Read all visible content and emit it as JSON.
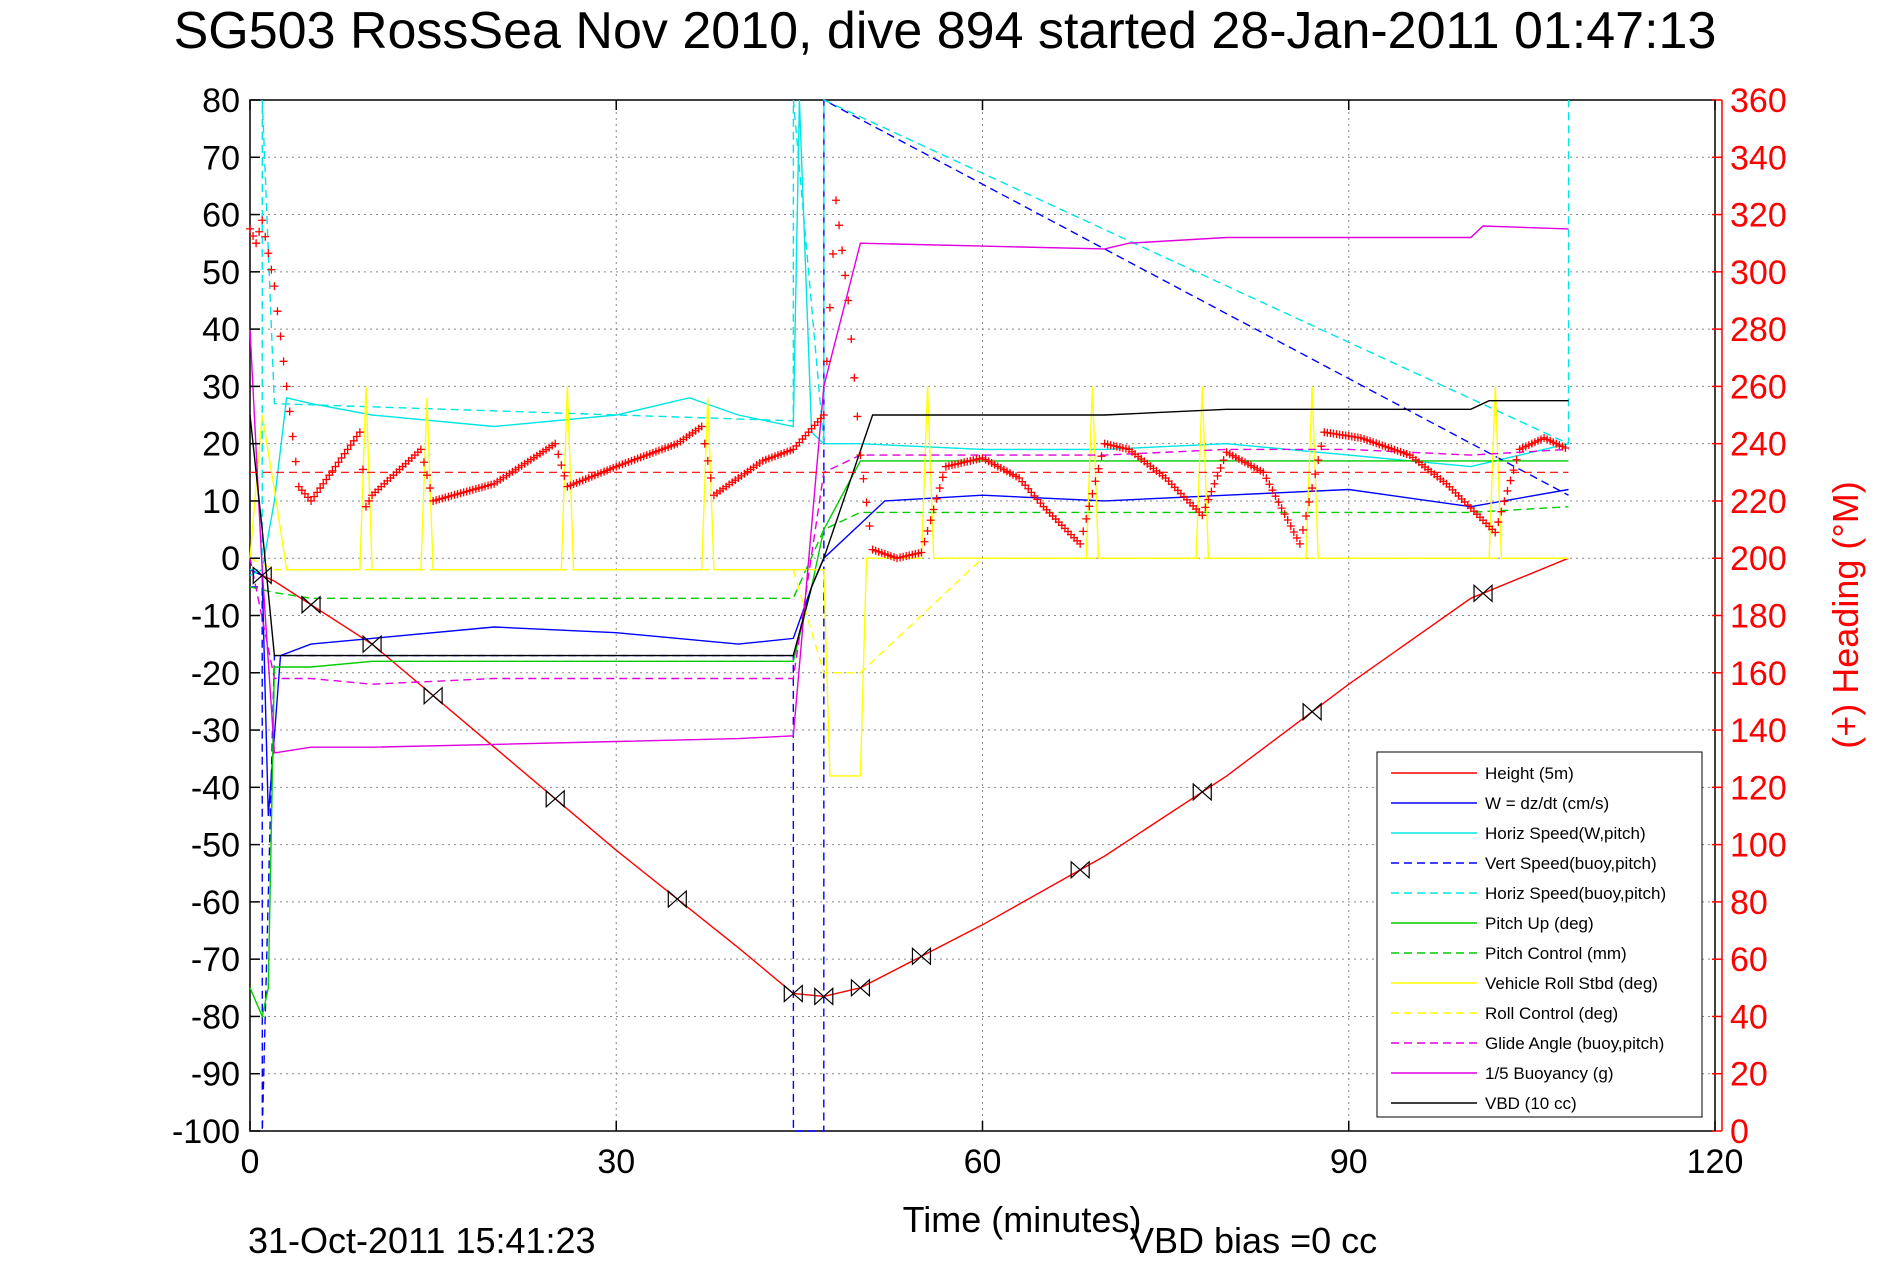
{
  "title": "SG503 RossSea Nov 2010, dive 894 started 28-Jan-2011 01:47:13",
  "footer": {
    "timestamp": "31-Oct-2011 15:41:23",
    "vbd_bias": "VBD bias =0 cc"
  },
  "chart_data": {
    "type": "line",
    "xlabel": "Time (minutes)",
    "ylabel_right": "(+) Heading (°M)",
    "xlim": [
      0,
      120
    ],
    "ylim_left": [
      -100,
      80
    ],
    "ylim_right": [
      0,
      360
    ],
    "x_ticks": [
      "0",
      "30",
      "60",
      "90",
      "120"
    ],
    "y_left_ticks": [
      "80",
      "70",
      "60",
      "50",
      "40",
      "30",
      "20",
      "10",
      "0",
      "-10",
      "-20",
      "-30",
      "-40",
      "-50",
      "-60",
      "-70",
      "-80",
      "-90",
      "-100"
    ],
    "y_right_ticks": [
      "360",
      "340",
      "320",
      "300",
      "280",
      "260",
      "240",
      "220",
      "200",
      "180",
      "160",
      "140",
      "120",
      "100",
      "80",
      "60",
      "40",
      "20",
      "0"
    ],
    "grid": true,
    "legend_position": "lower-right",
    "series": [
      {
        "name": "Height (5m)",
        "color": "#ff0000",
        "dash": "solid",
        "x": [
          0,
          2,
          10,
          20,
          30,
          40,
          44.5,
          47,
          50,
          60,
          70,
          80,
          90,
          100,
          108
        ],
        "y": [
          -2,
          -4,
          -15,
          -33,
          -51,
          -68,
          -76,
          -76.5,
          -75,
          -64,
          -52,
          -38,
          -22,
          -7,
          0
        ]
      },
      {
        "name": "W = dz/dt (cm/s)",
        "color": "#0000ff",
        "dash": "solid",
        "x": [
          0,
          1,
          1.5,
          2.5,
          5,
          10,
          20,
          30,
          40,
          44.5,
          46,
          47,
          50,
          52,
          60,
          70,
          80,
          90,
          100,
          108
        ],
        "y": [
          -2,
          -3,
          -45,
          -17,
          -15,
          -14,
          -12,
          -13,
          -15,
          -14,
          -5,
          0,
          6,
          10,
          11,
          10,
          11,
          12,
          9,
          12
        ]
      },
      {
        "name": "Horiz Speed(W,pitch)",
        "color": "#00e5e5",
        "dash": "solid",
        "x": [
          0,
          1,
          2,
          3,
          5,
          10,
          20,
          30,
          36,
          40,
          44.5,
          45,
          46,
          47,
          50,
          60,
          70,
          80,
          90,
          100,
          108
        ],
        "y": [
          -3,
          -2,
          10,
          28,
          27,
          25,
          23,
          25,
          28,
          25,
          23,
          80,
          22,
          20,
          20,
          19,
          19,
          20,
          18,
          16,
          20
        ]
      },
      {
        "name": "Vert Speed(buoy,pitch)",
        "color": "#0000ff",
        "dash": "dashed",
        "x": [
          0,
          1,
          1.01,
          2,
          44.5,
          44.51,
          47,
          47.01,
          108
        ],
        "y": [
          -5,
          -5,
          -100,
          -17,
          -17,
          -100,
          -100,
          80,
          11
        ]
      },
      {
        "name": "Horiz Speed(buoy,pitch)",
        "color": "#00e5e5",
        "dash": "dashed",
        "x": [
          0,
          1,
          1.01,
          2,
          44.5,
          44.51,
          47,
          47.01,
          108,
          108.01
        ],
        "y": [
          -2,
          -2,
          80,
          27,
          24,
          80,
          20,
          80,
          20,
          80
        ]
      },
      {
        "name": "Pitch Up (deg)",
        "color": "#00cc00",
        "dash": "solid",
        "x": [
          0,
          1,
          1.5,
          2,
          5,
          10,
          20,
          30,
          40,
          44.5,
          46,
          47,
          50,
          60,
          70,
          80,
          90,
          100,
          108
        ],
        "y": [
          -75,
          -80,
          -75,
          -19,
          -19,
          -18,
          -18,
          -18,
          -18,
          -18,
          -5,
          5,
          17,
          17,
          17,
          17,
          17,
          17,
          17
        ]
      },
      {
        "name": "Pitch Control (mm)",
        "color": "#00cc00",
        "dash": "dashed",
        "x": [
          0,
          2,
          5,
          10,
          20,
          30,
          40,
          44.5,
          47,
          50,
          60,
          70,
          80,
          90,
          100,
          108
        ],
        "y": [
          -5,
          -6,
          -7,
          -7,
          -7,
          -7,
          -7,
          -7,
          5,
          8,
          8,
          8,
          8,
          8,
          8,
          9
        ]
      },
      {
        "name": "Vehicle Roll Stbd (deg)",
        "color": "#ffff00",
        "dash": "solid",
        "x": [
          0,
          1,
          2,
          3,
          9,
          9.5,
          10,
          14,
          14.5,
          15,
          25.5,
          26,
          26.5,
          37,
          37.5,
          38,
          47,
          47.5,
          50,
          50.5,
          55,
          55.5,
          56,
          68.5,
          69,
          69.5,
          77.5,
          78,
          78.5,
          86.5,
          87,
          87.5,
          101.5,
          102,
          102.5,
          108
        ],
        "y": [
          0,
          25,
          12,
          -2,
          -2,
          30,
          -2,
          -2,
          28,
          -2,
          -2,
          30,
          -2,
          -2,
          28,
          -2,
          -2,
          -38,
          -38,
          0,
          0,
          30,
          0,
          0,
          30,
          0,
          0,
          30,
          0,
          0,
          30,
          0,
          0,
          30,
          0,
          0
        ]
      },
      {
        "name": "Roll Control (deg)",
        "color": "#ffff00",
        "dash": "dashed",
        "x": [
          0,
          2,
          10,
          20,
          30,
          40,
          44.5,
          47,
          50,
          60,
          70,
          80,
          90,
          100,
          108
        ],
        "y": [
          0,
          -2,
          -2,
          -2,
          -2,
          -2,
          -2,
          -20,
          -20,
          0,
          0,
          0,
          0,
          0,
          0
        ]
      },
      {
        "name": "Glide Angle (buoy,pitch)",
        "color": "#e000e0",
        "dash": "dashed",
        "x": [
          0,
          2,
          5,
          10,
          20,
          30,
          40,
          44.5,
          47,
          50,
          60,
          70,
          80,
          90,
          100,
          108
        ],
        "y": [
          0,
          -21,
          -21,
          -22,
          -21,
          -21,
          -21,
          -21,
          15,
          18,
          18,
          18,
          19,
          19,
          18,
          19
        ]
      },
      {
        "name": "1/5 Buoyancy (g)",
        "color": "#e000e0",
        "dash": "solid",
        "x": [
          0,
          1,
          2,
          5,
          10,
          20,
          30,
          40,
          44.5,
          47,
          50,
          60,
          70,
          72,
          80,
          90,
          100,
          101,
          108
        ],
        "y": [
          40,
          -2,
          -34,
          -33,
          -33,
          -32.5,
          -32,
          -31.5,
          -31,
          30,
          55,
          54.5,
          54,
          55,
          56,
          56,
          56,
          58,
          57.5
        ]
      },
      {
        "name": "VBD (10 cc)",
        "color": "#000000",
        "dash": "solid",
        "x": [
          0,
          1,
          2,
          10,
          20,
          30,
          40,
          44.5,
          46,
          47,
          51,
          60,
          70,
          80,
          90,
          100,
          101.5,
          108
        ],
        "y": [
          25,
          5,
          -17,
          -17,
          -17,
          -17,
          -17,
          -17,
          -5,
          0,
          25,
          25,
          25,
          26,
          26,
          26,
          27.5,
          27.5
        ]
      }
    ],
    "heading_series": {
      "name": "(+) Heading (°M)",
      "color": "#ff0000",
      "marker": "+",
      "mean_line": 230,
      "x": [
        0,
        0.5,
        1,
        2,
        3,
        4,
        5,
        7,
        9,
        9.5,
        10,
        12,
        14,
        15,
        20,
        25,
        26,
        30,
        35,
        37,
        38,
        42,
        44.5,
        47,
        48,
        49,
        50,
        51,
        53,
        55,
        57,
        60,
        63,
        65,
        68,
        70,
        72,
        75,
        78,
        80,
        83,
        86,
        88,
        91,
        95,
        98,
        102,
        104,
        106,
        108
      ],
      "y": [
        315,
        310,
        318,
        295,
        260,
        225,
        220,
        232,
        244,
        218,
        222,
        230,
        238,
        220,
        226,
        240,
        225,
        232,
        240,
        246,
        222,
        234,
        238,
        250,
        325,
        290,
        236,
        203,
        200,
        202,
        232,
        235,
        228,
        218,
        205,
        240,
        238,
        228,
        215,
        237,
        230,
        205,
        244,
        242,
        236,
        226,
        209,
        238,
        242,
        238
      ]
    },
    "height_markers": {
      "down_x": [
        1,
        5,
        10,
        15,
        25,
        35,
        44.5,
        47,
        50
      ],
      "up_x": [
        55,
        68,
        78,
        87,
        101
      ]
    }
  }
}
